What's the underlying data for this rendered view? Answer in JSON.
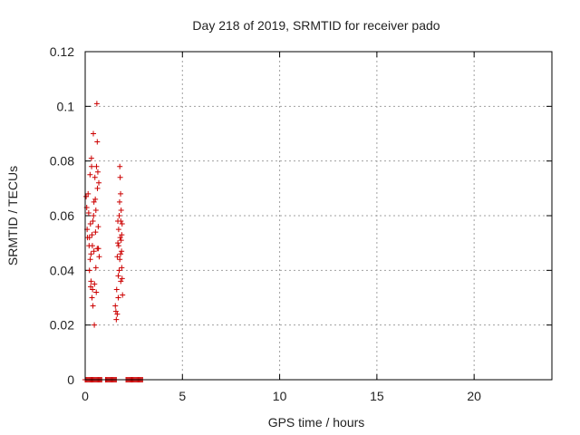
{
  "chart_data": {
    "type": "scatter",
    "title": "Day 218 of 2019, SRMTID for receiver pado",
    "xlabel": "GPS time / hours",
    "ylabel": "SRMTID / TECUs",
    "xlim": [
      0,
      24
    ],
    "ylim": [
      0,
      0.12
    ],
    "x_ticks": [
      0,
      5,
      10,
      15,
      20
    ],
    "x_tick_labels": [
      "0",
      "5",
      "10",
      "15",
      "20"
    ],
    "y_ticks": [
      0,
      0.02,
      0.04,
      0.06,
      0.08,
      0.1,
      0.12
    ],
    "y_tick_labels": [
      "0",
      "0.02",
      "0.04",
      "0.06",
      "0.08",
      "0.1",
      "0.12"
    ],
    "grid": true,
    "marker": "+",
    "series": [
      {
        "name": "SRMTID",
        "color": "#cc0000",
        "points": [
          [
            0.05,
            0.067
          ],
          [
            0.08,
            0.063
          ],
          [
            0.1,
            0.055
          ],
          [
            0.12,
            0.052
          ],
          [
            0.15,
            0.068
          ],
          [
            0.18,
            0.061
          ],
          [
            0.2,
            0.049
          ],
          [
            0.22,
            0.04
          ],
          [
            0.25,
            0.075
          ],
          [
            0.27,
            0.057
          ],
          [
            0.28,
            0.034
          ],
          [
            0.3,
            0.046
          ],
          [
            0.32,
            0.081
          ],
          [
            0.33,
            0.078
          ],
          [
            0.35,
            0.053
          ],
          [
            0.37,
            0.049
          ],
          [
            0.38,
            0.033
          ],
          [
            0.4,
            0.027
          ],
          [
            0.42,
            0.09
          ],
          [
            0.43,
            0.06
          ],
          [
            0.45,
            0.047
          ],
          [
            0.47,
            0.02
          ],
          [
            0.5,
            0.074
          ],
          [
            0.52,
            0.066
          ],
          [
            0.53,
            0.054
          ],
          [
            0.55,
            0.041
          ],
          [
            0.57,
            0.032
          ],
          [
            0.58,
            0.078
          ],
          [
            0.6,
            0.101
          ],
          [
            0.62,
            0.087
          ],
          [
            0.63,
            0.07
          ],
          [
            0.65,
            0.076
          ],
          [
            0.67,
            0.056
          ],
          [
            0.68,
            0.048
          ],
          [
            0.7,
            0.072
          ],
          [
            0.72,
            0.045
          ],
          [
            0.3,
            0.036
          ],
          [
            0.35,
            0.03
          ],
          [
            0.4,
            0.058
          ],
          [
            0.45,
            0.065
          ],
          [
            0.22,
            0.052
          ],
          [
            0.26,
            0.044
          ],
          [
            0.48,
            0.035
          ],
          [
            0.55,
            0.062
          ],
          [
            0.62,
            0.048
          ],
          [
            1.55,
            0.027
          ],
          [
            1.58,
            0.025
          ],
          [
            1.6,
            0.022
          ],
          [
            1.62,
            0.033
          ],
          [
            1.65,
            0.045
          ],
          [
            1.68,
            0.05
          ],
          [
            1.7,
            0.038
          ],
          [
            1.72,
            0.055
          ],
          [
            1.75,
            0.06
          ],
          [
            1.77,
            0.065
          ],
          [
            1.78,
            0.078
          ],
          [
            1.8,
            0.074
          ],
          [
            1.82,
            0.068
          ],
          [
            1.83,
            0.058
          ],
          [
            1.85,
            0.051
          ],
          [
            1.87,
            0.047
          ],
          [
            1.88,
            0.041
          ],
          [
            1.9,
            0.037
          ],
          [
            1.92,
            0.031
          ],
          [
            1.65,
            0.024
          ],
          [
            1.7,
            0.03
          ],
          [
            1.75,
            0.04
          ],
          [
            1.8,
            0.052
          ],
          [
            1.85,
            0.062
          ],
          [
            1.9,
            0.057
          ],
          [
            1.72,
            0.049
          ],
          [
            1.78,
            0.044
          ],
          [
            1.83,
            0.036
          ],
          [
            1.88,
            0.053
          ],
          [
            1.68,
            0.058
          ],
          [
            1.82,
            0.046
          ],
          [
            0.0,
            0
          ],
          [
            0.05,
            0
          ],
          [
            0.1,
            0
          ],
          [
            0.15,
            0
          ],
          [
            0.2,
            0
          ],
          [
            0.25,
            0
          ],
          [
            0.3,
            0
          ],
          [
            0.35,
            0
          ],
          [
            0.4,
            0
          ],
          [
            0.45,
            0
          ],
          [
            0.5,
            0
          ],
          [
            0.55,
            0
          ],
          [
            0.6,
            0
          ],
          [
            0.65,
            0
          ],
          [
            0.7,
            0
          ],
          [
            0.75,
            0
          ],
          [
            0.8,
            0
          ],
          [
            0.85,
            0
          ],
          [
            1.05,
            0
          ],
          [
            1.1,
            0
          ],
          [
            1.15,
            0
          ],
          [
            1.2,
            0
          ],
          [
            1.25,
            0
          ],
          [
            1.3,
            0
          ],
          [
            1.35,
            0
          ],
          [
            1.4,
            0
          ],
          [
            1.45,
            0
          ],
          [
            1.5,
            0
          ],
          [
            1.55,
            0
          ],
          [
            1.6,
            0
          ],
          [
            2.1,
            0
          ],
          [
            2.15,
            0
          ],
          [
            2.2,
            0
          ],
          [
            2.25,
            0
          ],
          [
            2.3,
            0
          ],
          [
            2.35,
            0
          ],
          [
            2.4,
            0
          ],
          [
            2.45,
            0
          ],
          [
            2.5,
            0
          ],
          [
            2.55,
            0
          ],
          [
            2.6,
            0
          ],
          [
            2.65,
            0
          ],
          [
            2.7,
            0
          ],
          [
            2.75,
            0
          ],
          [
            2.8,
            0
          ],
          [
            2.85,
            0
          ],
          [
            2.9,
            0
          ],
          [
            2.95,
            0
          ]
        ]
      }
    ]
  }
}
